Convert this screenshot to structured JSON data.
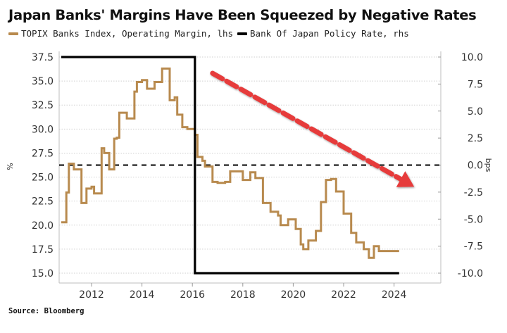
{
  "chart_data": {
    "type": "line",
    "title": "Japan Banks' Margins Have Been Squeezed by Negative Rates",
    "legend": [
      {
        "name": "TOPIX Banks Index, Operating Margin, lhs",
        "color": "#b88a4e"
      },
      {
        "name": "Bank Of Japan Policy Rate, rhs",
        "color": "#000000"
      }
    ],
    "source": "Source: Bloomberg",
    "ylabel_left": "%",
    "ylabel_right": "bps",
    "ylim_left": [
      15.0,
      37.5
    ],
    "ylim_right": [
      -10.0,
      10.0
    ],
    "yticks_left": [
      "37.5",
      "35.0",
      "32.5",
      "30.0",
      "27.5",
      "25.0",
      "22.5",
      "20.0",
      "17.5",
      "15.0"
    ],
    "yticks_right": [
      "10.0",
      "7.5",
      "5.0",
      "2.5",
      "0.0",
      "-2.5",
      "-5.0",
      "-7.5",
      "-10.0"
    ],
    "xticks": [
      "2012",
      "2014",
      "2016",
      "2018",
      "2020",
      "2022",
      "2024"
    ],
    "xlim": [
      2010.75,
      2025.3
    ],
    "grid": true,
    "reference_line": {
      "axis": "right",
      "value": 0.0,
      "style": "dashed"
    },
    "annotation": {
      "type": "arrow",
      "color": "#e63b3b",
      "style": "dashed",
      "from": [
        2016.8,
        8.5
      ],
      "to": [
        2024.8,
        -2.0
      ],
      "meaning": "downtrend"
    },
    "series": [
      {
        "name": "TOPIX Banks Index, Operating Margin, lhs",
        "axis": "left",
        "x": [
          2010.8,
          2011.0,
          2011.1,
          2011.3,
          2011.6,
          2011.8,
          2012.0,
          2012.1,
          2012.4,
          2012.5,
          2012.7,
          2012.9,
          2013.0,
          2013.1,
          2013.4,
          2013.7,
          2013.8,
          2014.0,
          2014.2,
          2014.5,
          2014.8,
          2015.1,
          2015.3,
          2015.4,
          2015.6,
          2015.8,
          2016.1,
          2016.2,
          2016.4,
          2016.5,
          2016.8,
          2017.0,
          2017.3,
          2017.5,
          2018.0,
          2018.3,
          2018.5,
          2018.8,
          2019.1,
          2019.4,
          2019.5,
          2019.8,
          2020.1,
          2020.3,
          2020.4,
          2020.6,
          2020.9,
          2021.1,
          2021.3,
          2021.5,
          2021.7,
          2022.0,
          2022.3,
          2022.5,
          2022.8,
          2023.0,
          2023.2,
          2023.4,
          2023.6,
          2023.9,
          2024.1,
          2024.2
        ],
        "values": [
          20.3,
          23.4,
          26.4,
          25.8,
          22.3,
          23.8,
          24.0,
          23.3,
          28.0,
          27.5,
          25.8,
          29.0,
          29.1,
          31.7,
          31.1,
          33.9,
          34.9,
          35.1,
          34.2,
          34.9,
          36.3,
          33.0,
          33.3,
          31.5,
          30.2,
          30.0,
          29.4,
          27.1,
          26.7,
          26.1,
          24.5,
          24.4,
          24.5,
          25.6,
          24.7,
          25.5,
          24.9,
          22.3,
          21.4,
          21.0,
          20.0,
          20.6,
          19.6,
          18.0,
          17.5,
          18.4,
          19.4,
          22.4,
          24.7,
          24.8,
          23.5,
          21.2,
          19.2,
          18.2,
          17.5,
          16.6,
          17.8,
          17.3,
          17.3,
          17.3,
          17.3,
          17.3
        ]
      },
      {
        "name": "Bank Of Japan Policy Rate, rhs",
        "axis": "right",
        "x": [
          2010.8,
          2016.1,
          2016.1,
          2024.2
        ],
        "values": [
          10.0,
          10.0,
          -10.0,
          -10.0
        ]
      }
    ]
  }
}
